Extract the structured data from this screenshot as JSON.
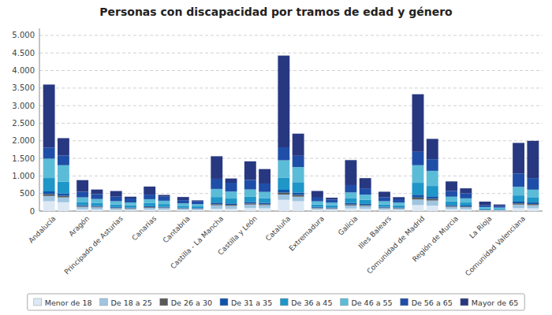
{
  "chart_data": {
    "type": "bar",
    "title": "Personas con discapacidad por tramos de edad y género",
    "stacked": true,
    "grid": true,
    "legend": "bottom",
    "categories": [
      "Andalucía",
      "Aragón",
      "Principado de Asturias",
      "Canarias",
      "Cantabria",
      "Castilla - La Mancha",
      "Castilla y León",
      "Cataluña",
      "Extremadura",
      "Galicia",
      "Illes Balears",
      "Comunidad de Madrid",
      "Región de Murcia",
      "La Rioja",
      "Comunidad Valenciana"
    ],
    "series": [
      {
        "name": "Menor de 18",
        "color": "#dce9f5",
        "values": [
          280,
          50,
          30,
          40,
          30,
          65,
          85,
          320,
          40,
          75,
          38,
          170,
          55,
          15,
          85
        ],
        "values2": [
          250,
          45,
          28,
          38,
          28,
          60,
          78,
          280,
          36,
          68,
          33,
          155,
          50,
          13,
          78
        ]
      },
      {
        "name": "De 18 a 25",
        "color": "#9fc5e0",
        "values": [
          150,
          70,
          50,
          55,
          40,
          100,
          100,
          150,
          40,
          85,
          45,
          160,
          65,
          16,
          100
        ],
        "values2": [
          140,
          60,
          42,
          48,
          35,
          90,
          90,
          130,
          35,
          75,
          40,
          145,
          58,
          14,
          90
        ]
      },
      {
        "name": "De 26 a 30",
        "color": "#595959",
        "values": [
          50,
          20,
          15,
          18,
          10,
          30,
          30,
          55,
          15,
          28,
          15,
          55,
          22,
          5,
          35
        ],
        "values2": [
          45,
          18,
          12,
          15,
          9,
          27,
          27,
          48,
          13,
          25,
          12,
          50,
          20,
          4,
          32
        ]
      },
      {
        "name": "De 31 a 35",
        "color": "#1155aa",
        "values": [
          80,
          30,
          20,
          25,
          15,
          45,
          45,
          80,
          22,
          42,
          22,
          80,
          32,
          8,
          50
        ],
        "values2": [
          70,
          25,
          17,
          20,
          13,
          40,
          40,
          70,
          18,
          36,
          18,
          70,
          28,
          6,
          44
        ]
      },
      {
        "name": "De 36 a 45",
        "color": "#1e96c8",
        "values": [
          380,
          90,
          75,
          90,
          55,
          160,
          155,
          340,
          70,
          130,
          70,
          340,
          100,
          30,
          175
        ],
        "values2": [
          330,
          80,
          65,
          78,
          48,
          140,
          135,
          295,
          60,
          115,
          60,
          295,
          88,
          26,
          152
        ]
      },
      {
        "name": "De 46 a 55",
        "color": "#5bbcd8",
        "values": [
          550,
          130,
          90,
          110,
          70,
          230,
          200,
          500,
          90,
          170,
          90,
          500,
          135,
          40,
          245
        ],
        "values2": [
          470,
          115,
          80,
          95,
          62,
          200,
          175,
          430,
          78,
          148,
          78,
          430,
          118,
          35,
          213
        ]
      },
      {
        "name": "De 56 a 65",
        "color": "#1f4ea8",
        "values": [
          320,
          160,
          130,
          130,
          90,
          290,
          270,
          370,
          105,
          210,
          110,
          380,
          165,
          50,
          380
        ],
        "values2": [
          280,
          140,
          115,
          115,
          80,
          250,
          240,
          320,
          90,
          180,
          95,
          330,
          145,
          44,
          330
        ]
      },
      {
        "name": "Mayor de 65",
        "color": "#283880",
        "values": [
          1790,
          330,
          160,
          230,
          90,
          640,
          530,
          2610,
          190,
          710,
          160,
          1640,
          270,
          105,
          870
        ],
        "values2": [
          490,
          130,
          50,
          50,
          30,
          120,
          410,
          630,
          50,
          290,
          60,
          580,
          140,
          45,
          1060
        ]
      }
    ],
    "ylim": [
      0,
      5200
    ],
    "yticks": [
      0,
      500,
      {
        "value": 1000,
        "label": "1.000"
      },
      {
        "value": 1500,
        "label": "1.500"
      },
      {
        "value": 2000,
        "label": "2.000"
      },
      {
        "value": 2500,
        "label": "2.500"
      },
      {
        "value": 3000,
        "label": "3.000"
      },
      {
        "value": 3500,
        "label": "3.500"
      },
      {
        "value": 4000,
        "label": "4.000"
      },
      {
        "value": 4500,
        "label": "4.500"
      },
      {
        "value": 5000,
        "label": "5.000"
      }
    ]
  }
}
